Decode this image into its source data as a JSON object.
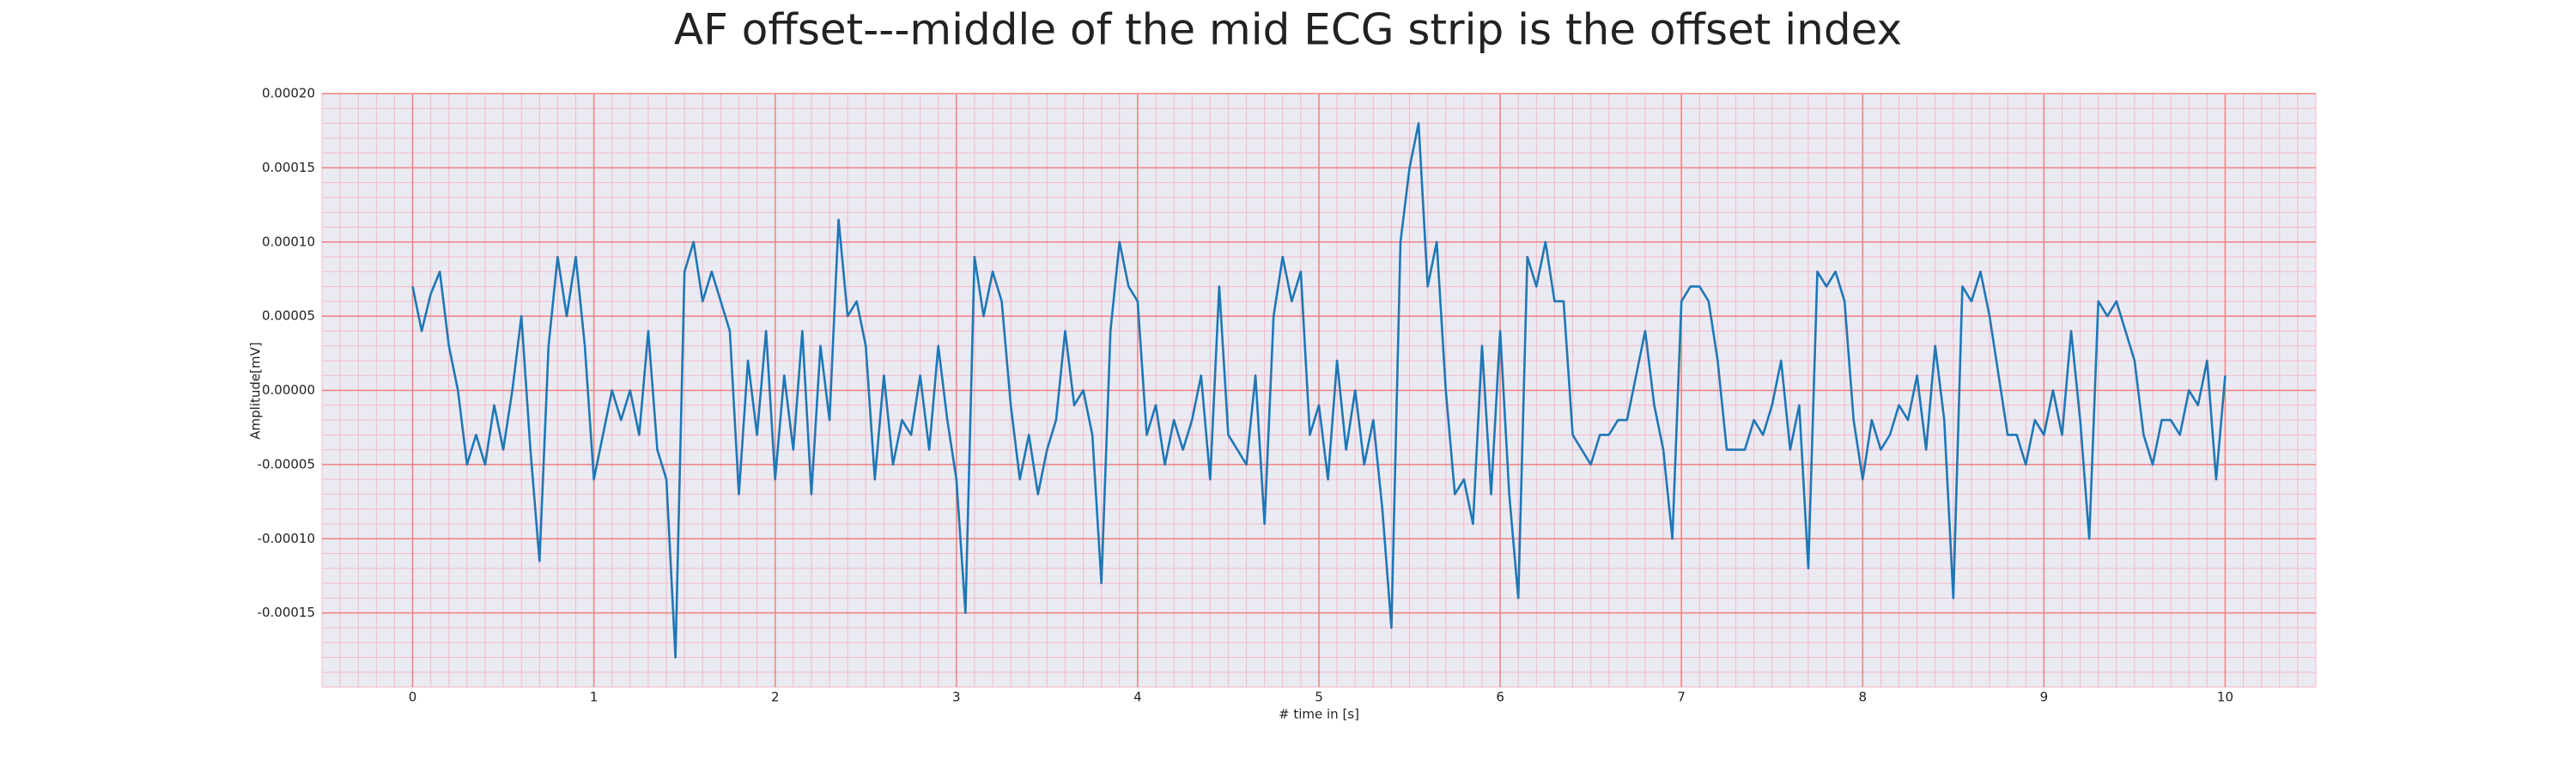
{
  "chart_data": {
    "type": "line",
    "title": "AF offset---middle of the mid ECG strip is the offset index",
    "x_label": "# time in [s]",
    "y_label": "Amplitude[mV]",
    "xlim": [
      -0.5,
      10.5
    ],
    "ylim": [
      -0.0002,
      0.0002
    ],
    "xticks": [
      0,
      1,
      2,
      3,
      4,
      5,
      6,
      7,
      8,
      9,
      10
    ],
    "yticks": [
      {
        "value": -0.00015,
        "label": "-0.00015"
      },
      {
        "value": -0.0001,
        "label": "-0.00010"
      },
      {
        "value": -5e-05,
        "label": "-0.00005"
      },
      {
        "value": 0,
        "label": "0.00000"
      },
      {
        "value": 5e-05,
        "label": "0.00005"
      },
      {
        "value": 0.0001,
        "label": "0.00010"
      },
      {
        "value": 0.00015,
        "label": "0.00015"
      },
      {
        "value": 0.0002,
        "label": "0.00020"
      }
    ],
    "grid": true,
    "minor_grid": true,
    "grid_color": "#f08080",
    "minor_grid_color": "#f5b8c8",
    "background": "#eaeaf2",
    "x": [
      0,
      0.05,
      0.1,
      0.15,
      0.2,
      0.25,
      0.3,
      0.35,
      0.4,
      0.45,
      0.5,
      0.55,
      0.6,
      0.65,
      0.7,
      0.75,
      0.8,
      0.85,
      0.9,
      0.95,
      1,
      1.05,
      1.1,
      1.15,
      1.2,
      1.25,
      1.3,
      1.35,
      1.4,
      1.45,
      1.5,
      1.55,
      1.6,
      1.65,
      1.7,
      1.75,
      1.8,
      1.85,
      1.9,
      1.95,
      2,
      2.05,
      2.1,
      2.15,
      2.2,
      2.25,
      2.3,
      2.35,
      2.4,
      2.45,
      2.5,
      2.55,
      2.6,
      2.65,
      2.7,
      2.75,
      2.8,
      2.85,
      2.9,
      2.95,
      3,
      3.05,
      3.1,
      3.15,
      3.2,
      3.25,
      3.3,
      3.35,
      3.4,
      3.45,
      3.5,
      3.55,
      3.6,
      3.65,
      3.7,
      3.75,
      3.8,
      3.85,
      3.9,
      3.95,
      4,
      4.05,
      4.1,
      4.15,
      4.2,
      4.25,
      4.3,
      4.35,
      4.4,
      4.45,
      4.5,
      4.55,
      4.6,
      4.65,
      4.7,
      4.75,
      4.8,
      4.85,
      4.9,
      4.95,
      5,
      5.05,
      5.1,
      5.15,
      5.2,
      5.25,
      5.3,
      5.35,
      5.4,
      5.45,
      5.5,
      5.55,
      5.6,
      5.65,
      5.7,
      5.75,
      5.8,
      5.85,
      5.9,
      5.95,
      6,
      6.05,
      6.1,
      6.15,
      6.2,
      6.25,
      6.3,
      6.35,
      6.4,
      6.45,
      6.5,
      6.55,
      6.6,
      6.65,
      6.7,
      6.75,
      6.8,
      6.85,
      6.9,
      6.95,
      7,
      7.05,
      7.1,
      7.15,
      7.2,
      7.25,
      7.3,
      7.35,
      7.4,
      7.45,
      7.5,
      7.55,
      7.6,
      7.65,
      7.7,
      7.75,
      7.8,
      7.85,
      7.9,
      7.95,
      8,
      8.05,
      8.1,
      8.15,
      8.2,
      8.25,
      8.3,
      8.35,
      8.4,
      8.45,
      8.5,
      8.55,
      8.6,
      8.65,
      8.7,
      8.75,
      8.8,
      8.85,
      8.9,
      8.95,
      9,
      9.05,
      9.1,
      9.15,
      9.2,
      9.25,
      9.3,
      9.35,
      9.4,
      9.45,
      9.5,
      9.55,
      9.6,
      9.65,
      9.7,
      9.75,
      9.8,
      9.85,
      9.9,
      9.95,
      10
    ],
    "series": [
      {
        "color": "#1f77b4",
        "values": [
          7e-05,
          4e-05,
          6.5e-05,
          8e-05,
          3e-05,
          0,
          -5e-05,
          -3e-05,
          -5e-05,
          -1e-05,
          -4e-05,
          0,
          5e-05,
          -4e-05,
          -0.000115,
          3e-05,
          9e-05,
          5e-05,
          9e-05,
          3e-05,
          -6e-05,
          -3e-05,
          0,
          -2e-05,
          0,
          -3e-05,
          4e-05,
          -4e-05,
          -6e-05,
          -0.00018,
          8e-05,
          0.0001,
          6e-05,
          8e-05,
          6e-05,
          4e-05,
          -7e-05,
          2e-05,
          -3e-05,
          4e-05,
          -6e-05,
          1e-05,
          -4e-05,
          4e-05,
          -7e-05,
          3e-05,
          -2e-05,
          0.000115,
          5e-05,
          6e-05,
          3e-05,
          -6e-05,
          1e-05,
          -5e-05,
          -2e-05,
          -3e-05,
          1e-05,
          -4e-05,
          3e-05,
          -2e-05,
          -6e-05,
          -0.00015,
          9e-05,
          5e-05,
          8e-05,
          6e-05,
          -1e-05,
          -6e-05,
          -3e-05,
          -7e-05,
          -4e-05,
          -2e-05,
          4e-05,
          -1e-05,
          0,
          -3e-05,
          -0.00013,
          4e-05,
          0.0001,
          7e-05,
          6e-05,
          -3e-05,
          -1e-05,
          -5e-05,
          -2e-05,
          -4e-05,
          -2e-05,
          1e-05,
          -6e-05,
          7e-05,
          -3e-05,
          -4e-05,
          -5e-05,
          1e-05,
          -9e-05,
          5e-05,
          9e-05,
          6e-05,
          8e-05,
          -3e-05,
          -1e-05,
          -6e-05,
          2e-05,
          -4e-05,
          0,
          -5e-05,
          -2e-05,
          -8e-05,
          -0.00016,
          0.0001,
          0.00015,
          0.00018,
          7e-05,
          0.0001,
          0,
          -7e-05,
          -6e-05,
          -9e-05,
          3e-05,
          -7e-05,
          4e-05,
          -7e-05,
          -0.00014,
          9e-05,
          7e-05,
          0.0001,
          6e-05,
          6e-05,
          -3e-05,
          -4e-05,
          -5e-05,
          -3e-05,
          -3e-05,
          -2e-05,
          -2e-05,
          1e-05,
          4e-05,
          -1e-05,
          -4e-05,
          -0.0001,
          6e-05,
          7e-05,
          7e-05,
          6e-05,
          2e-05,
          -4e-05,
          -4e-05,
          -4e-05,
          -2e-05,
          -3e-05,
          -1e-05,
          2e-05,
          -4e-05,
          -1e-05,
          -0.00012,
          8e-05,
          7e-05,
          8e-05,
          6e-05,
          -2e-05,
          -6e-05,
          -2e-05,
          -4e-05,
          -3e-05,
          -1e-05,
          -2e-05,
          1e-05,
          -4e-05,
          3e-05,
          -2e-05,
          -0.00014,
          7e-05,
          6e-05,
          8e-05,
          5e-05,
          1e-05,
          -3e-05,
          -3e-05,
          -5e-05,
          -2e-05,
          -3e-05,
          0,
          -3e-05,
          4e-05,
          -2e-05,
          -0.0001,
          6e-05,
          5e-05,
          6e-05,
          4e-05,
          2e-05,
          -3e-05,
          -5e-05,
          -2e-05,
          -2e-05,
          -3e-05,
          0,
          -1e-05,
          2e-05,
          -6e-05,
          1e-05
        ]
      }
    ]
  }
}
